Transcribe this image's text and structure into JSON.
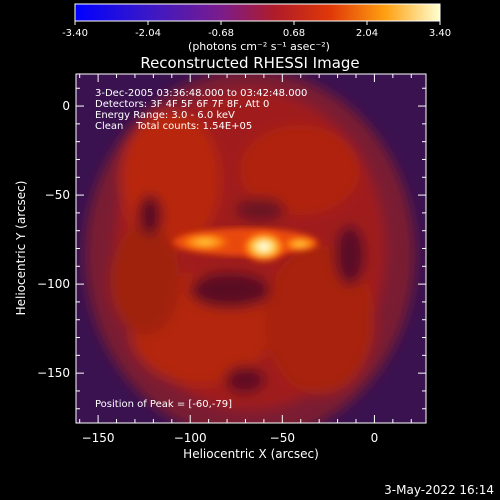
{
  "colorbar": {
    "tick_labels": [
      "-3.40",
      "-2.04",
      "-0.68",
      "0.68",
      "2.04",
      "3.40"
    ],
    "units_label": "(photons cm⁻² s⁻¹ asec⁻²)",
    "range": [
      -3.4,
      3.4
    ]
  },
  "chart_data": {
    "type": "heatmap",
    "title": "Reconstructed RHESSI Image",
    "xlabel": "Heliocentric X (arcsec)",
    "ylabel": "Heliocentric Y (arcsec)",
    "xlim": [
      -162,
      28
    ],
    "ylim": [
      -178,
      18
    ],
    "x_ticks": [
      -150,
      -100,
      -50,
      0
    ],
    "y_ticks": [
      0,
      -50,
      -100,
      -150
    ],
    "x_tick_labels": [
      "−150",
      "−100",
      "−50",
      "0"
    ],
    "y_tick_labels": [
      "0",
      "−50",
      "−100",
      "−150"
    ],
    "annotations": [
      "3-Dec-2005 03:36:48.000 to 03:42:48.000",
      "Detectors: 3F 4F 5F 6F 7F 8F, Att 0",
      "Energy Range: 3.0 - 6.0 keV",
      "Clean    Total counts: 1.54E+05"
    ],
    "peak_label": "Position of Peak = [-60,-79]",
    "peak": [
      -60,
      -79
    ]
  },
  "footer": {
    "date": "3-May-2022 16:14"
  }
}
